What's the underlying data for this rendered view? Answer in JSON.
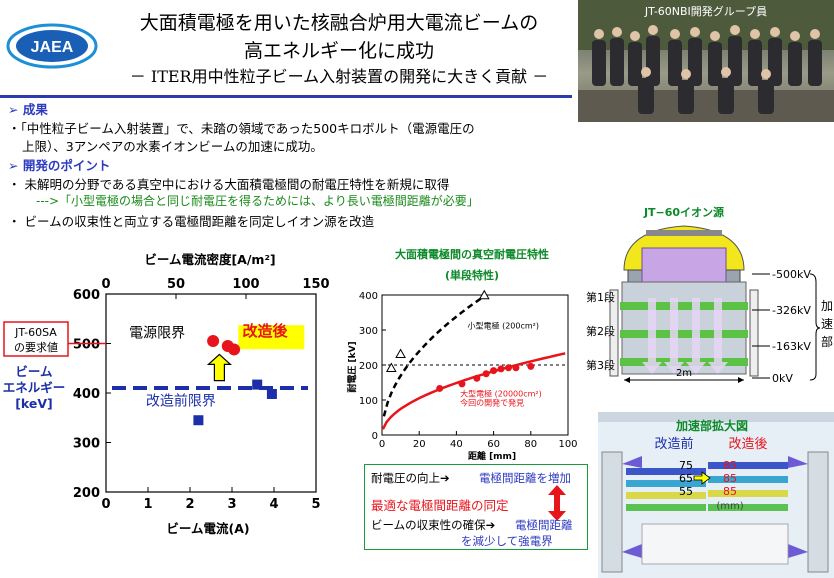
{
  "logo": {
    "text": "JAEA"
  },
  "title": {
    "line1": "大面積電極を用いた核融合炉用大電流ビームの",
    "line2": "高エネルギー化に成功",
    "subtitle": "－ ITER用中性粒子ビーム入射装置の開発に大きく貢献 －"
  },
  "photo": {
    "caption": "JT-60NBI開発グループ員"
  },
  "sections": {
    "result_heading": "➢ 成果",
    "result_text1": "・「中性粒子ビーム入射装置」で、未踏の領域であった500キロボルト（電源電圧の",
    "result_text2": "上限）、3アンペアの水素イオンビームの加速に成功。",
    "point_heading": "➢ 開発のポイント",
    "point_text1": "・ 未解明の分野である真空中における大面積電極間の耐電圧特性を新規に取得",
    "point_note": "--->「小型電極の場合と同じ耐電圧を得るためには、より長い電極間距離が必要」",
    "point_text2": "・ ビームの収束性と両立する電極間距離を同定しイオン源を改造"
  },
  "colors": {
    "accent": "#2d3bc1",
    "red": "#e8141b",
    "green": "#1a9a3a",
    "yellow": "#ffff00"
  },
  "chart_data": [
    {
      "type": "scatter",
      "xlabel": "ビーム電流(A)",
      "x2label": "ビーム電流密度[A/m²]",
      "ylabel": "ビーム エネルギー [keV]",
      "xlim": [
        0,
        5
      ],
      "ylim": [
        200,
        600
      ],
      "xticks": [
        "0",
        "1",
        "2",
        "3",
        "4",
        "5"
      ],
      "x2ticks": [
        "0",
        "50",
        "100",
        "150"
      ],
      "yticks": [
        "200",
        "300",
        "400",
        "500",
        "600"
      ],
      "labels": {
        "limit": "電源限界",
        "after": "改造後",
        "before_limit": "改造前限界",
        "requirement": "JT-60SA の要求値"
      },
      "requirement_value": 500,
      "before_limit_value": 410,
      "series": [
        {
          "name": "改造後",
          "points": [
            [
              2.55,
              505
            ],
            [
              2.9,
              495
            ],
            [
              3.05,
              488
            ]
          ]
        },
        {
          "name": "改造前",
          "points": [
            [
              2.2,
              345
            ],
            [
              3.6,
              417
            ],
            [
              3.95,
              398
            ]
          ]
        }
      ]
    },
    {
      "type": "line",
      "title": "大面積電極間の真空耐電圧特性",
      "subtitle": "(単段特性)",
      "xlabel": "距離 [mm]",
      "ylabel": "耐電圧 [kV]",
      "xlim": [
        0,
        100
      ],
      "ylim": [
        0,
        400
      ],
      "xticks": [
        "0",
        "20",
        "40",
        "60",
        "80",
        "100"
      ],
      "yticks": [
        "0",
        "100",
        "200",
        "300",
        "400"
      ],
      "reference_line": 200,
      "series": [
        {
          "name": "小型電極 (200cm²)",
          "points": [
            [
              5,
              190
            ],
            [
              10,
              230
            ],
            [
              55,
              398
            ]
          ]
        },
        {
          "name": "大型電極 (20000cm²) 今回の開発で発見",
          "points": [
            [
              31,
              133
            ],
            [
              43,
              146
            ],
            [
              51,
              162
            ],
            [
              56,
              175
            ],
            [
              60,
              184
            ],
            [
              64,
              189
            ],
            [
              68,
              192
            ],
            [
              72,
              192
            ],
            [
              80,
              196
            ]
          ]
        }
      ]
    }
  ],
  "greenbox": {
    "line1": "耐電圧の向上➔",
    "line1b": "電極間距離を増加",
    "line2": "最適な電極間距離の同定",
    "line3": "ビームの収束性の確保➔",
    "line3b": "電極間距離",
    "line4": "を減少して強電界"
  },
  "ion_source": {
    "title": "JT−60イオン源",
    "stage1": "第1段",
    "stage2": "第2段",
    "stage3": "第3段",
    "v1": "-500kV",
    "v2": "-326kV",
    "v3": "-163kV",
    "v4": "0kV",
    "width": "2m",
    "accel": "加速部"
  },
  "enlarged": {
    "title": "加速部拡大図",
    "before": "改造前",
    "after": "改造後",
    "before_values": [
      "75",
      "65",
      "55"
    ],
    "after_values": [
      "85",
      "85",
      "85"
    ],
    "unit": "(mm)"
  }
}
